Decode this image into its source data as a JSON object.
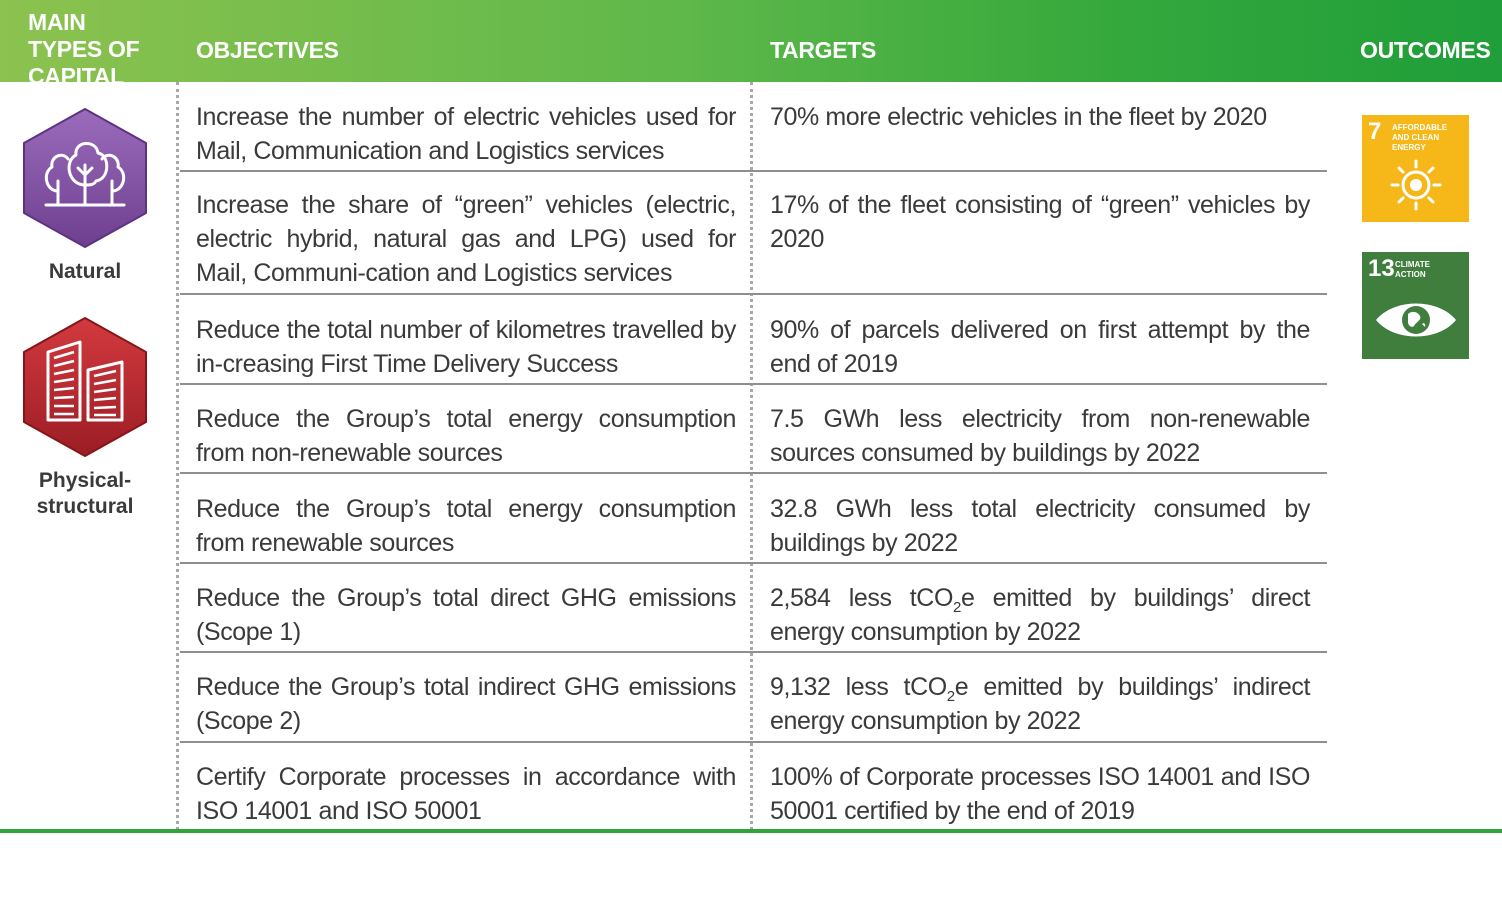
{
  "header": {
    "capital": "MAIN TYPES OF CAPITAL",
    "objectives": "OBJECTIVES",
    "targets": "TARGETS",
    "outcomes": "OUTCOMES"
  },
  "capitals": [
    {
      "label": "Natural",
      "icon": "trees-icon",
      "color": "#7d4f9e"
    },
    {
      "label": "Physical-structural",
      "icon": "buildings-icon",
      "color": "#b1232a"
    }
  ],
  "rows": [
    {
      "objective": "Increase the number of electric vehicles used for Mail, Communication and Logistics services",
      "target": "70% more electric vehicles in the fleet by 2020"
    },
    {
      "objective": "Increase the share of “green” vehicles (electric, electric hybrid, natural gas and LPG) used for Mail, Communi-cation and Logistics services",
      "target": "17% of the fleet consisting of “green” vehicles by 2020"
    },
    {
      "objective": "Reduce the total number of kilometres travelled by in-creasing First Time Delivery Success",
      "target": "90% of parcels delivered on first attempt by the end of 2019"
    },
    {
      "objective": "Reduce the Group’s total energy consumption from non-renewable sources",
      "target": "7.5 GWh less electricity from non-renewable sources consumed by buildings by 2022"
    },
    {
      "objective": "Reduce the Group’s total energy consumption from renewable sources",
      "target": "32.8 GWh less total electricity consumed by buildings by 2022"
    },
    {
      "objective": "Reduce the Group’s total direct GHG emissions (Scope 1)",
      "target_pre": "2,584 less tCO",
      "target_sub": "2",
      "target_post": "e emitted by buildings’ direct energy consumption by 2022"
    },
    {
      "objective": "Reduce the Group’s total indirect GHG emissions (Scope 2)",
      "target_pre": "9,132 less tCO",
      "target_sub": "2",
      "target_post": "e emitted by buildings’ indirect energy consumption by 2022"
    },
    {
      "objective": "Certify Corporate processes in accordance with ISO 14001 and ISO 50001",
      "target": "100% of Corporate processes ISO 14001 and ISO 50001 certified by the end of 2019"
    }
  ],
  "outcomes": [
    {
      "number": "7",
      "text": "AFFORDABLE AND CLEAN ENERGY",
      "color": "#f6b718",
      "icon": "sun-icon"
    },
    {
      "number": "13",
      "text": "CLIMATE ACTION",
      "color": "#3f7e3d",
      "icon": "eye-globe-icon"
    }
  ]
}
